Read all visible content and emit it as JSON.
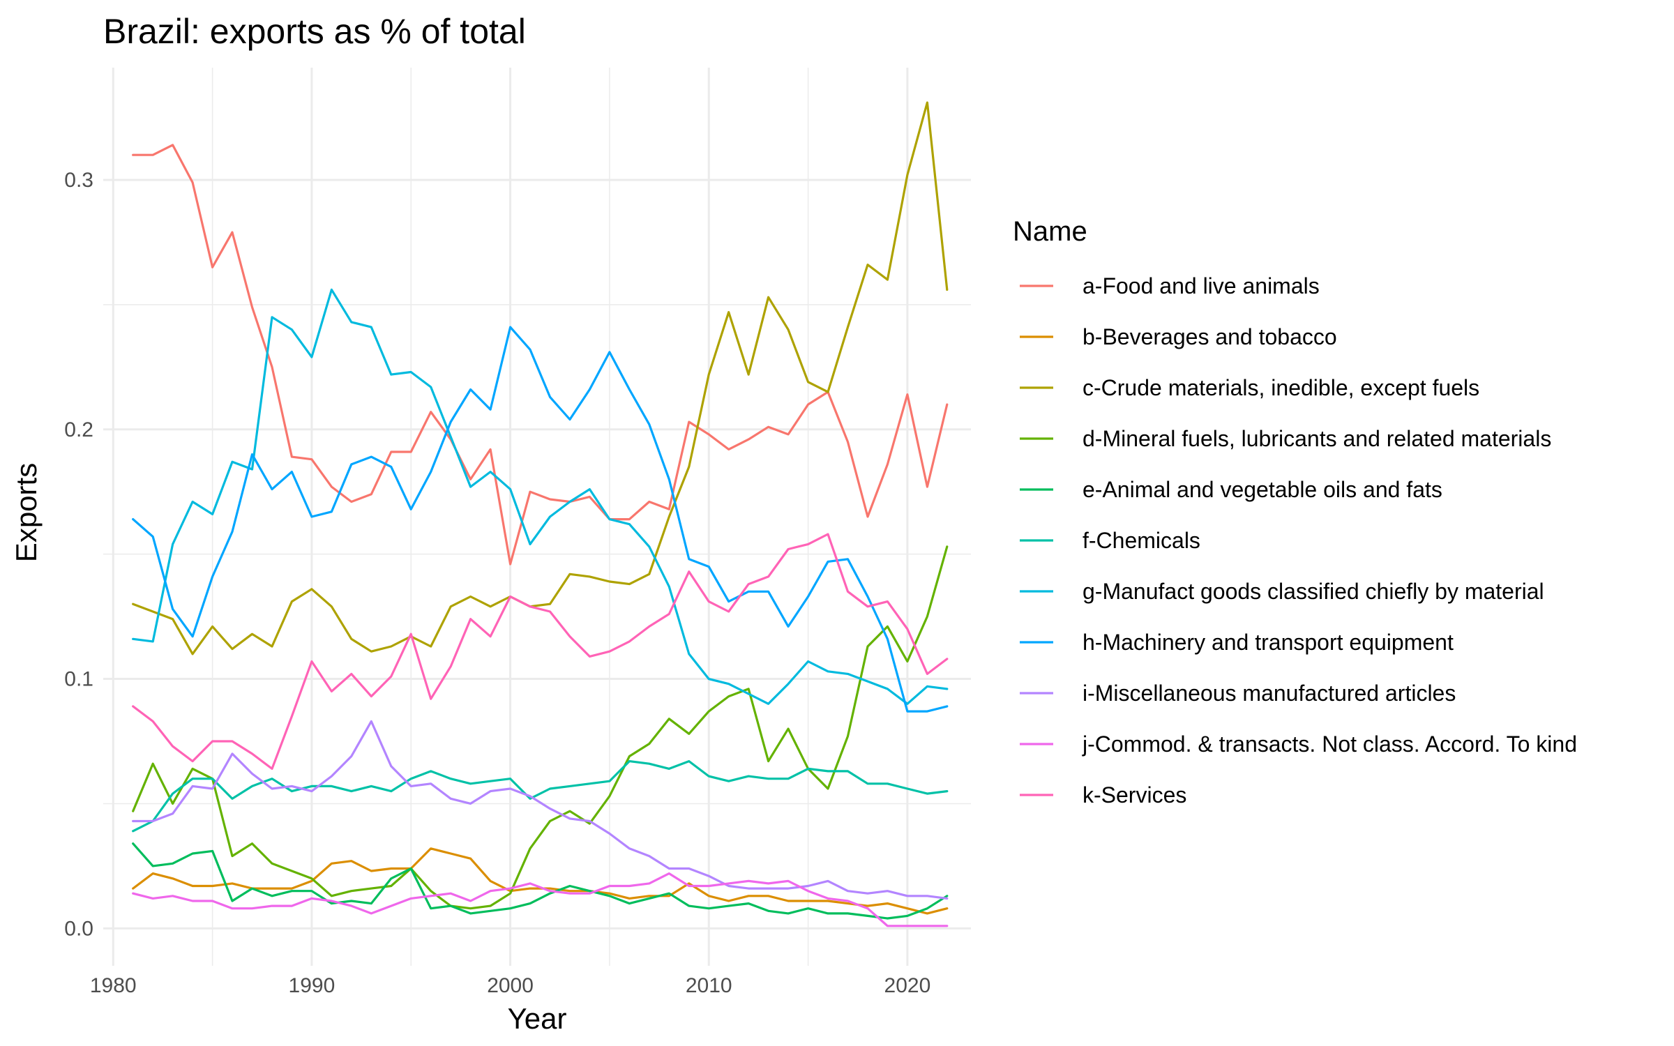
{
  "chart_data": {
    "type": "line",
    "title": "Brazil: exports as % of total",
    "xlabel": "Year",
    "ylabel": "Exports",
    "xlim": [
      1979.5,
      2023.2
    ],
    "ylim": [
      -0.015,
      0.345
    ],
    "x_ticks": [
      1980,
      1990,
      2000,
      2010,
      2020
    ],
    "x_tick_labels": [
      "1980",
      "1990",
      "2000",
      "2010",
      "2020"
    ],
    "y_ticks": [
      0.0,
      0.1,
      0.2,
      0.3
    ],
    "y_tick_labels": [
      "0.0",
      "0.1",
      "0.2",
      "0.3"
    ],
    "grid": true,
    "legend_title": "Name",
    "legend_position": "right",
    "x": [
      1981,
      1982,
      1983,
      1984,
      1985,
      1986,
      1987,
      1988,
      1989,
      1990,
      1991,
      1992,
      1993,
      1994,
      1995,
      1996,
      1997,
      1998,
      1999,
      2000,
      2001,
      2002,
      2003,
      2004,
      2005,
      2006,
      2007,
      2008,
      2009,
      2010,
      2011,
      2012,
      2013,
      2014,
      2015,
      2016,
      2017,
      2018,
      2019,
      2020,
      2021,
      2022
    ],
    "series": [
      {
        "name": "a-Food and live animals",
        "color": "#F8766D",
        "values": [
          0.31,
          0.31,
          0.314,
          0.299,
          0.265,
          0.279,
          0.249,
          0.225,
          0.189,
          0.188,
          0.177,
          0.171,
          0.174,
          0.191,
          0.191,
          0.207,
          0.196,
          0.18,
          0.192,
          0.146,
          0.175,
          0.172,
          0.171,
          0.173,
          0.164,
          0.164,
          0.171,
          0.168,
          0.203,
          0.198,
          0.192,
          0.196,
          0.201,
          0.198,
          0.21,
          0.215,
          0.195,
          0.165,
          0.186,
          0.214,
          0.177,
          0.21
        ]
      },
      {
        "name": "b-Beverages and tobacco",
        "color": "#DB8E00",
        "values": [
          0.016,
          0.022,
          0.02,
          0.017,
          0.017,
          0.018,
          0.016,
          0.016,
          0.016,
          0.019,
          0.026,
          0.027,
          0.023,
          0.024,
          0.024,
          0.032,
          0.03,
          0.028,
          0.019,
          0.015,
          0.016,
          0.016,
          0.015,
          0.015,
          0.014,
          0.012,
          0.013,
          0.013,
          0.018,
          0.013,
          0.011,
          0.013,
          0.013,
          0.011,
          0.011,
          0.011,
          0.01,
          0.009,
          0.01,
          0.008,
          0.006,
          0.008
        ]
      },
      {
        "name": "c-Crude materials, inedible, except fuels",
        "color": "#AEA200",
        "values": [
          0.13,
          0.127,
          0.124,
          0.11,
          0.121,
          0.112,
          0.118,
          0.113,
          0.131,
          0.136,
          0.129,
          0.116,
          0.111,
          0.113,
          0.117,
          0.113,
          0.129,
          0.133,
          0.129,
          0.133,
          0.129,
          0.13,
          0.142,
          0.141,
          0.139,
          0.138,
          0.142,
          0.165,
          0.185,
          0.222,
          0.247,
          0.222,
          0.253,
          0.24,
          0.219,
          0.215,
          0.241,
          0.266,
          0.26,
          0.302,
          0.331,
          0.256
        ]
      },
      {
        "name": "d-Mineral fuels, lubricants and related materials",
        "color": "#64B200",
        "values": [
          0.047,
          0.066,
          0.05,
          0.064,
          0.06,
          0.029,
          0.034,
          0.026,
          0.023,
          0.02,
          0.013,
          0.015,
          0.016,
          0.017,
          0.024,
          0.015,
          0.009,
          0.008,
          0.009,
          0.014,
          0.032,
          0.043,
          0.047,
          0.042,
          0.053,
          0.069,
          0.074,
          0.084,
          0.078,
          0.087,
          0.093,
          0.096,
          0.067,
          0.08,
          0.064,
          0.056,
          0.077,
          0.113,
          0.121,
          0.107,
          0.125,
          0.153
        ]
      },
      {
        "name": "e-Animal and vegetable oils and fats",
        "color": "#00BD5C",
        "values": [
          0.034,
          0.025,
          0.026,
          0.03,
          0.031,
          0.011,
          0.016,
          0.013,
          0.015,
          0.015,
          0.01,
          0.011,
          0.01,
          0.02,
          0.024,
          0.008,
          0.009,
          0.006,
          0.007,
          0.008,
          0.01,
          0.014,
          0.017,
          0.015,
          0.013,
          0.01,
          0.012,
          0.014,
          0.009,
          0.008,
          0.009,
          0.01,
          0.007,
          0.006,
          0.008,
          0.006,
          0.006,
          0.005,
          0.004,
          0.005,
          0.008,
          0.013
        ]
      },
      {
        "name": "f-Chemicals",
        "color": "#00C1A7",
        "values": [
          0.039,
          0.043,
          0.054,
          0.06,
          0.06,
          0.052,
          0.057,
          0.06,
          0.055,
          0.057,
          0.057,
          0.055,
          0.057,
          0.055,
          0.06,
          0.063,
          0.06,
          0.058,
          0.059,
          0.06,
          0.052,
          0.056,
          0.057,
          0.058,
          0.059,
          0.067,
          0.066,
          0.064,
          0.067,
          0.061,
          0.059,
          0.061,
          0.06,
          0.06,
          0.064,
          0.063,
          0.063,
          0.058,
          0.058,
          0.056,
          0.054,
          0.055
        ]
      },
      {
        "name": "g-Manufact goods classified chiefly by material",
        "color": "#00BADE",
        "values": [
          0.116,
          0.115,
          0.154,
          0.171,
          0.166,
          0.187,
          0.184,
          0.245,
          0.24,
          0.229,
          0.256,
          0.243,
          0.241,
          0.222,
          0.223,
          0.217,
          0.197,
          0.177,
          0.183,
          0.176,
          0.154,
          0.165,
          0.171,
          0.176,
          0.164,
          0.162,
          0.153,
          0.137,
          0.11,
          0.1,
          0.098,
          0.094,
          0.09,
          0.098,
          0.107,
          0.103,
          0.102,
          0.099,
          0.096,
          0.09,
          0.097,
          0.096
        ]
      },
      {
        "name": "h-Machinery and transport equipment",
        "color": "#00A6FF",
        "values": [
          0.164,
          0.157,
          0.128,
          0.117,
          0.141,
          0.159,
          0.19,
          0.176,
          0.183,
          0.165,
          0.167,
          0.186,
          0.189,
          0.185,
          0.168,
          0.183,
          0.203,
          0.216,
          0.208,
          0.241,
          0.232,
          0.213,
          0.204,
          0.216,
          0.231,
          0.216,
          0.202,
          0.18,
          0.148,
          0.145,
          0.131,
          0.135,
          0.135,
          0.121,
          0.133,
          0.147,
          0.148,
          0.133,
          0.116,
          0.087,
          0.087,
          0.089
        ]
      },
      {
        "name": "i-Miscellaneous manufactured articles",
        "color": "#B385FF",
        "values": [
          0.043,
          0.043,
          0.046,
          0.057,
          0.056,
          0.07,
          0.062,
          0.056,
          0.057,
          0.055,
          0.061,
          0.069,
          0.083,
          0.065,
          0.057,
          0.058,
          0.052,
          0.05,
          0.055,
          0.056,
          0.053,
          0.048,
          0.044,
          0.043,
          0.038,
          0.032,
          0.029,
          0.024,
          0.024,
          0.021,
          0.017,
          0.016,
          0.016,
          0.016,
          0.017,
          0.019,
          0.015,
          0.014,
          0.015,
          0.013,
          0.013,
          0.012
        ]
      },
      {
        "name": "j-Commod. & transacts. Not class. Accord. To kind",
        "color": "#EF67EB",
        "values": [
          0.014,
          0.012,
          0.013,
          0.011,
          0.011,
          0.008,
          0.008,
          0.009,
          0.009,
          0.012,
          0.011,
          0.009,
          0.006,
          0.009,
          0.012,
          0.013,
          0.014,
          0.011,
          0.015,
          0.016,
          0.018,
          0.015,
          0.014,
          0.014,
          0.017,
          0.017,
          0.018,
          0.022,
          0.017,
          0.017,
          0.018,
          0.019,
          0.018,
          0.019,
          0.015,
          0.012,
          0.011,
          0.008,
          0.001,
          0.001,
          0.001,
          0.001
        ]
      },
      {
        "name": "k-Services",
        "color": "#FF63B6",
        "values": [
          0.089,
          0.083,
          0.073,
          0.067,
          0.075,
          0.075,
          0.07,
          0.064,
          0.085,
          0.107,
          0.095,
          0.102,
          0.093,
          0.101,
          0.118,
          0.092,
          0.105,
          0.124,
          0.117,
          0.133,
          0.129,
          0.127,
          0.117,
          0.109,
          0.111,
          0.115,
          0.121,
          0.126,
          0.143,
          0.131,
          0.127,
          0.138,
          0.141,
          0.152,
          0.154,
          0.158,
          0.135,
          0.129,
          0.131,
          0.12,
          0.102,
          0.108
        ]
      }
    ]
  }
}
